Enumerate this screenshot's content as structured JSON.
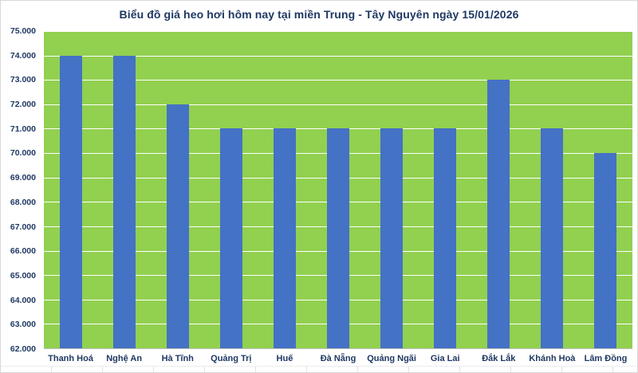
{
  "chart_data": {
    "type": "bar",
    "title": "Biểu đồ giá heo hơi hôm nay tại miền Trung - Tây Nguyên ngày 15/01/2026",
    "categories": [
      "Thanh Hoá",
      "Nghệ An",
      "Hà Tĩnh",
      "Quảng Trị",
      "Huế",
      "Đà Nẵng",
      "Quảng Ngãi",
      "Gia Lai",
      "Đắk Lắk",
      "Khánh Hoà",
      "Lâm Đồng"
    ],
    "values": [
      74000,
      74000,
      72000,
      71000,
      71000,
      71000,
      71000,
      71000,
      73000,
      71000,
      70000
    ],
    "xlabel": "",
    "ylabel": "",
    "ylim": [
      62000,
      75000
    ],
    "ytick_step": 1000,
    "ytick_labels": [
      "62.000",
      "63.000",
      "64.000",
      "65.000",
      "66.000",
      "67.000",
      "68.000",
      "69.000",
      "70.000",
      "71.000",
      "72.000",
      "73.000",
      "74.000",
      "75.000"
    ],
    "grid": true,
    "legend_position": "none",
    "bar_color": "#4472c4",
    "plot_background_color": "#92d050",
    "gridline_color": "#ffffff",
    "label_color": "#1f3864"
  }
}
